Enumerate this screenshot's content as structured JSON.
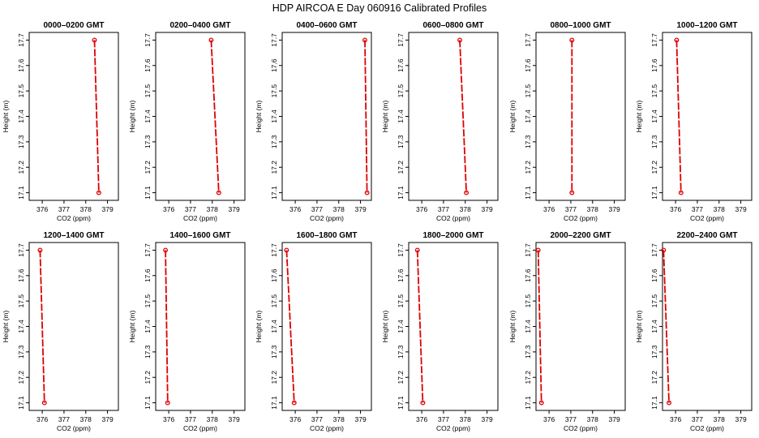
{
  "figure_title": "HDP  AIRCOA E  Day 060916  Calibrated Profiles",
  "chart_data": [
    {
      "type": "line",
      "title": "0000–0200 GMT",
      "xlabel": "CO2 (ppm)",
      "ylabel": "Height (m)",
      "xlim": [
        375.4,
        379.5
      ],
      "ylim": [
        17.07,
        17.73
      ],
      "x_ticks": [
        376,
        377,
        378,
        379
      ],
      "y_ticks": [
        17.1,
        17.2,
        17.3,
        17.4,
        17.5,
        17.6,
        17.7
      ],
      "series": [
        {
          "x": [
            378.4,
            378.6
          ],
          "y": [
            17.7,
            17.1
          ]
        }
      ]
    },
    {
      "type": "line",
      "title": "0200–0400 GMT",
      "xlabel": "CO2 (ppm)",
      "ylabel": "Height (m)",
      "xlim": [
        375.4,
        379.5
      ],
      "ylim": [
        17.07,
        17.73
      ],
      "x_ticks": [
        376,
        377,
        378,
        379
      ],
      "y_ticks": [
        17.1,
        17.2,
        17.3,
        17.4,
        17.5,
        17.6,
        17.7
      ],
      "series": [
        {
          "x": [
            377.95,
            378.3
          ],
          "y": [
            17.7,
            17.1
          ]
        }
      ]
    },
    {
      "type": "line",
      "title": "0400–0600 GMT",
      "xlabel": "CO2 (ppm)",
      "ylabel": "Height (m)",
      "xlim": [
        375.4,
        379.5
      ],
      "ylim": [
        17.07,
        17.73
      ],
      "x_ticks": [
        376,
        377,
        378,
        379
      ],
      "y_ticks": [
        17.1,
        17.2,
        17.3,
        17.4,
        17.5,
        17.6,
        17.7
      ],
      "series": [
        {
          "x": [
            379.2,
            379.3
          ],
          "y": [
            17.7,
            17.1
          ]
        }
      ]
    },
    {
      "type": "line",
      "title": "0600–0800 GMT",
      "xlabel": "CO2 (ppm)",
      "ylabel": "Height (m)",
      "xlim": [
        375.4,
        379.5
      ],
      "ylim": [
        17.07,
        17.73
      ],
      "x_ticks": [
        376,
        377,
        378,
        379
      ],
      "y_ticks": [
        17.1,
        17.2,
        17.3,
        17.4,
        17.5,
        17.6,
        17.7
      ],
      "series": [
        {
          "x": [
            377.75,
            378.05
          ],
          "y": [
            17.7,
            17.1
          ]
        }
      ]
    },
    {
      "type": "line",
      "title": "0800–1000 GMT",
      "xlabel": "CO2 (ppm)",
      "ylabel": "Height (m)",
      "xlim": [
        375.4,
        379.5
      ],
      "ylim": [
        17.07,
        17.73
      ],
      "x_ticks": [
        376,
        377,
        378,
        379
      ],
      "y_ticks": [
        17.1,
        17.2,
        17.3,
        17.4,
        17.5,
        17.6,
        17.7
      ],
      "series": [
        {
          "x": [
            377.05,
            377.05
          ],
          "y": [
            17.7,
            17.1
          ]
        }
      ]
    },
    {
      "type": "line",
      "title": "1000–1200 GMT",
      "xlabel": "CO2 (ppm)",
      "ylabel": "Height (m)",
      "xlim": [
        375.4,
        379.5
      ],
      "ylim": [
        17.07,
        17.73
      ],
      "x_ticks": [
        376,
        377,
        378,
        379
      ],
      "y_ticks": [
        17.1,
        17.2,
        17.3,
        17.4,
        17.5,
        17.6,
        17.7
      ],
      "series": [
        {
          "x": [
            376.05,
            376.25
          ],
          "y": [
            17.7,
            17.1
          ]
        }
      ]
    },
    {
      "type": "line",
      "title": "1200–1400 GMT",
      "xlabel": "CO2 (ppm)",
      "ylabel": "Height (m)",
      "xlim": [
        375.4,
        379.5
      ],
      "ylim": [
        17.07,
        17.73
      ],
      "x_ticks": [
        376,
        377,
        378,
        379
      ],
      "y_ticks": [
        17.1,
        17.2,
        17.3,
        17.4,
        17.5,
        17.6,
        17.7
      ],
      "series": [
        {
          "x": [
            375.9,
            376.1
          ],
          "y": [
            17.7,
            17.1
          ]
        }
      ]
    },
    {
      "type": "line",
      "title": "1400–1600 GMT",
      "xlabel": "CO2 (ppm)",
      "ylabel": "Height (m)",
      "xlim": [
        375.4,
        379.5
      ],
      "ylim": [
        17.07,
        17.73
      ],
      "x_ticks": [
        376,
        377,
        378,
        379
      ],
      "y_ticks": [
        17.1,
        17.2,
        17.3,
        17.4,
        17.5,
        17.6,
        17.7
      ],
      "series": [
        {
          "x": [
            375.85,
            375.95
          ],
          "y": [
            17.7,
            17.1
          ]
        }
      ]
    },
    {
      "type": "line",
      "title": "1600–1800 GMT",
      "xlabel": "CO2 (ppm)",
      "ylabel": "Height (m)",
      "xlim": [
        375.4,
        379.5
      ],
      "ylim": [
        17.07,
        17.73
      ],
      "x_ticks": [
        376,
        377,
        378,
        379
      ],
      "y_ticks": [
        17.1,
        17.2,
        17.3,
        17.4,
        17.5,
        17.6,
        17.7
      ],
      "series": [
        {
          "x": [
            375.6,
            375.95
          ],
          "y": [
            17.7,
            17.1
          ]
        }
      ]
    },
    {
      "type": "line",
      "title": "1800–2000 GMT",
      "xlabel": "CO2 (ppm)",
      "ylabel": "Height (m)",
      "xlim": [
        375.4,
        379.5
      ],
      "ylim": [
        17.07,
        17.73
      ],
      "x_ticks": [
        376,
        377,
        378,
        379
      ],
      "y_ticks": [
        17.1,
        17.2,
        17.3,
        17.4,
        17.5,
        17.6,
        17.7
      ],
      "series": [
        {
          "x": [
            375.8,
            376.05
          ],
          "y": [
            17.7,
            17.1
          ]
        }
      ]
    },
    {
      "type": "line",
      "title": "2000–2200 GMT",
      "xlabel": "CO2 (ppm)",
      "ylabel": "Height (m)",
      "xlim": [
        375.4,
        379.5
      ],
      "ylim": [
        17.07,
        17.73
      ],
      "x_ticks": [
        376,
        377,
        378,
        379
      ],
      "y_ticks": [
        17.1,
        17.2,
        17.3,
        17.4,
        17.5,
        17.6,
        17.7
      ],
      "series": [
        {
          "x": [
            375.5,
            375.65
          ],
          "y": [
            17.7,
            17.1
          ]
        }
      ]
    },
    {
      "type": "line",
      "title": "2200–2400 GMT",
      "xlabel": "CO2 (ppm)",
      "ylabel": "Height (m)",
      "xlim": [
        375.4,
        379.5
      ],
      "ylim": [
        17.07,
        17.73
      ],
      "x_ticks": [
        376,
        377,
        378,
        379
      ],
      "y_ticks": [
        17.1,
        17.2,
        17.3,
        17.4,
        17.5,
        17.6,
        17.7
      ],
      "series": [
        {
          "x": [
            375.45,
            375.7
          ],
          "y": [
            17.7,
            17.1
          ]
        }
      ]
    }
  ],
  "colors": {
    "series": "#dd0000",
    "axis": "#000000"
  }
}
